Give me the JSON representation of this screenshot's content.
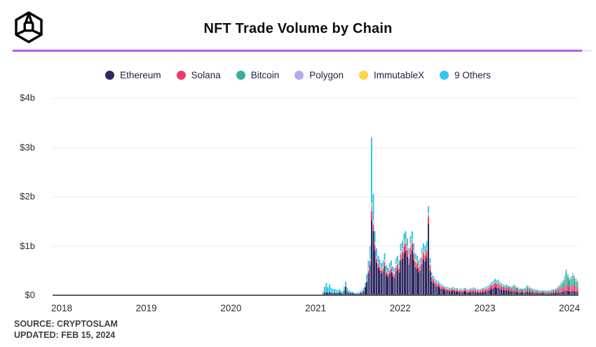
{
  "header": {
    "title": "NFT Trade Volume by Chain",
    "logo_alt": "CryptoSlam cube logo",
    "divider_color": "#b65ce6"
  },
  "footer": {
    "source_line": "SOURCE: CRYPTOSLAM",
    "updated_line": "UPDATED: FEB 15, 2024"
  },
  "chart_data": {
    "type": "bar",
    "stacked": true,
    "title": "NFT Trade Volume by Chain",
    "unit": "USD billions per week",
    "interval": "weekly",
    "legend_position": "top-center",
    "grid": "horizontal",
    "x_axis": {
      "ticks": [
        "2018",
        "2019",
        "2020",
        "2021",
        "2022",
        "2023",
        "2024"
      ],
      "range_years": [
        2017.9,
        2024.15
      ]
    },
    "y_axis": {
      "ticks": [
        "$4b",
        "$3b",
        "$2b",
        "$1b",
        "$0"
      ],
      "tick_values": [
        4,
        3,
        2,
        1,
        0
      ],
      "ylim": [
        0,
        4
      ]
    },
    "series": [
      {
        "name": "Ethereum",
        "color": "#2e2a62"
      },
      {
        "name": "Solana",
        "color": "#ee3d6d"
      },
      {
        "name": "Bitcoin",
        "color": "#35ae9e"
      },
      {
        "name": "Polygon",
        "color": "#b7a9e8"
      },
      {
        "name": "ImmutableX",
        "color": "#f8d748"
      },
      {
        "name": "9 Others",
        "color": "#33c5ee"
      }
    ],
    "bars": {
      "note": "values are [Ethereum, Solana, Bitcoin, Polygon, ImmutableX, 9 Others] in $ billions, weekly from late Jan 2021 to mid Feb 2024; 2018-2020 volumes are ~0",
      "x_start_year": 2021.08,
      "x_step_years": 0.019157,
      "values": [
        [
          0.03,
          0,
          0,
          0,
          0,
          0.05
        ],
        [
          0.05,
          0,
          0,
          0,
          0,
          0.12
        ],
        [
          0.06,
          0,
          0,
          0,
          0,
          0.19
        ],
        [
          0.05,
          0,
          0,
          0,
          0,
          0.11
        ],
        [
          0.06,
          0,
          0,
          0,
          0,
          0.16
        ],
        [
          0.05,
          0,
          0,
          0,
          0,
          0.1
        ],
        [
          0.04,
          0,
          0,
          0,
          0,
          0.09
        ],
        [
          0.04,
          0,
          0,
          0,
          0,
          0.08
        ],
        [
          0.04,
          0,
          0,
          0,
          0,
          0.07
        ],
        [
          0.04,
          0,
          0,
          0,
          0,
          0.06
        ],
        [
          0.05,
          0,
          0,
          0,
          0,
          0.07
        ],
        [
          0.04,
          0,
          0,
          0,
          0,
          0.05
        ],
        [
          0.03,
          0,
          0,
          0,
          0,
          0.05
        ],
        [
          0.09,
          0,
          0,
          0.01,
          0,
          0.08
        ],
        [
          0.17,
          0,
          0,
          0.01,
          0,
          0.1
        ],
        [
          0.07,
          0,
          0,
          0.01,
          0,
          0.06
        ],
        [
          0.05,
          0,
          0,
          0.01,
          0,
          0.04
        ],
        [
          0.04,
          0,
          0,
          0.01,
          0,
          0.03
        ],
        [
          0.04,
          0,
          0,
          0.01,
          0,
          0.02
        ],
        [
          0.03,
          0,
          0,
          0.01,
          0,
          0.02
        ],
        [
          0.03,
          0,
          0,
          0.01,
          0,
          0.01
        ],
        [
          0.03,
          0,
          0,
          0.01,
          0,
          0.02
        ],
        [
          0.03,
          0,
          0,
          0.01,
          0,
          0.02
        ],
        [
          0.04,
          0,
          0,
          0.01,
          0,
          0.03
        ],
        [
          0.05,
          0,
          0,
          0.01,
          0,
          0.04
        ],
        [
          0.08,
          0,
          0,
          0.02,
          0,
          0.04
        ],
        [
          0.16,
          0.01,
          0,
          0.02,
          0.01,
          0.05
        ],
        [
          0.26,
          0.02,
          0,
          0.03,
          0.01,
          0.1
        ],
        [
          0.45,
          0.04,
          0,
          0.04,
          0.02,
          0.15
        ],
        [
          0.62,
          0.06,
          0,
          0.05,
          0.02,
          0.25
        ],
        [
          1.52,
          0.18,
          0,
          0.1,
          0.08,
          1.32
        ],
        [
          1.3,
          0.12,
          0,
          0.06,
          0.04,
          0.53
        ],
        [
          0.9,
          0.1,
          0,
          0.05,
          0.03,
          0.22
        ],
        [
          0.65,
          0.08,
          0,
          0.04,
          0.02,
          0.16
        ],
        [
          0.55,
          0.07,
          0,
          0.04,
          0.02,
          0.12
        ],
        [
          0.5,
          0.06,
          0,
          0.03,
          0.02,
          0.11
        ],
        [
          0.44,
          0.06,
          0,
          0.03,
          0.02,
          0.1
        ],
        [
          0.48,
          0.06,
          0,
          0.03,
          0.02,
          0.11
        ],
        [
          0.58,
          0.08,
          0,
          0.04,
          0.02,
          0.13
        ],
        [
          0.4,
          0.06,
          0,
          0.03,
          0.02,
          0.09
        ],
        [
          0.36,
          0.06,
          0,
          0.03,
          0.02,
          0.08
        ],
        [
          0.43,
          0.07,
          0,
          0.03,
          0.02,
          0.1
        ],
        [
          0.46,
          0.08,
          0,
          0.04,
          0.02,
          0.1
        ],
        [
          0.38,
          0.07,
          0,
          0.03,
          0.02,
          0.08
        ],
        [
          0.35,
          0.07,
          0,
          0.03,
          0.02,
          0.08
        ],
        [
          0.48,
          0.09,
          0,
          0.04,
          0.03,
          0.11
        ],
        [
          0.52,
          0.1,
          0,
          0.04,
          0.03,
          0.11
        ],
        [
          0.46,
          0.08,
          0,
          0.04,
          0.02,
          0.1
        ],
        [
          0.7,
          0.12,
          0,
          0.05,
          0.03,
          0.15
        ],
        [
          0.74,
          0.13,
          0,
          0.05,
          0.03,
          0.15
        ],
        [
          0.85,
          0.14,
          0,
          0.06,
          0.04,
          0.16
        ],
        [
          0.9,
          0.14,
          0,
          0.06,
          0.04,
          0.16
        ],
        [
          0.78,
          0.13,
          0,
          0.06,
          0.03,
          0.15
        ],
        [
          0.62,
          0.12,
          0,
          0.05,
          0.03,
          0.13
        ],
        [
          0.82,
          0.14,
          0,
          0.06,
          0.04,
          0.14
        ],
        [
          0.9,
          0.15,
          0,
          0.06,
          0.04,
          0.15
        ],
        [
          0.7,
          0.13,
          0,
          0.05,
          0.03,
          0.14
        ],
        [
          0.56,
          0.11,
          0,
          0.04,
          0.03,
          0.11
        ],
        [
          0.53,
          0.1,
          0,
          0.04,
          0.03,
          0.1
        ],
        [
          0.46,
          0.09,
          0,
          0.04,
          0.02,
          0.09
        ],
        [
          0.5,
          0.1,
          0,
          0.04,
          0.02,
          0.09
        ],
        [
          0.64,
          0.12,
          0,
          0.05,
          0.03,
          0.11
        ],
        [
          0.72,
          0.13,
          0,
          0.05,
          0.03,
          0.12
        ],
        [
          0.68,
          0.12,
          0,
          0.05,
          0.03,
          0.12
        ],
        [
          0.76,
          0.13,
          0,
          0.05,
          0.03,
          0.13
        ],
        [
          1.45,
          0.14,
          0,
          0.05,
          0.03,
          0.13
        ],
        [
          0.5,
          0.1,
          0,
          0.04,
          0.02,
          0.09
        ],
        [
          0.28,
          0.08,
          0,
          0.03,
          0.02,
          0.05
        ],
        [
          0.25,
          0.07,
          0,
          0.02,
          0.01,
          0.05
        ],
        [
          0.22,
          0.06,
          0,
          0.02,
          0.01,
          0.04
        ],
        [
          0.18,
          0.06,
          0,
          0.02,
          0.01,
          0.04
        ],
        [
          0.17,
          0.05,
          0,
          0.02,
          0.01,
          0.03
        ],
        [
          0.15,
          0.05,
          0,
          0.01,
          0.01,
          0.03
        ],
        [
          0.13,
          0.04,
          0,
          0.01,
          0.01,
          0.03
        ],
        [
          0.12,
          0.04,
          0,
          0.01,
          0.01,
          0.02
        ],
        [
          0.1,
          0.04,
          0,
          0.01,
          0.01,
          0.02
        ],
        [
          0.1,
          0.03,
          0,
          0.01,
          0.01,
          0.02
        ],
        [
          0.09,
          0.03,
          0,
          0.01,
          0.01,
          0.02
        ],
        [
          0.08,
          0.03,
          0,
          0.01,
          0.01,
          0.02
        ],
        [
          0.08,
          0.03,
          0,
          0.01,
          0.01,
          0.02
        ],
        [
          0.09,
          0.03,
          0,
          0.01,
          0.01,
          0.02
        ],
        [
          0.08,
          0.03,
          0,
          0.01,
          0.01,
          0.02
        ],
        [
          0.07,
          0.03,
          0,
          0.01,
          0.01,
          0.02
        ],
        [
          0.07,
          0.03,
          0,
          0.01,
          0.01,
          0.02
        ],
        [
          0.06,
          0.03,
          0,
          0.01,
          0.01,
          0.02
        ],
        [
          0.07,
          0.03,
          0,
          0.01,
          0.01,
          0.02
        ],
        [
          0.06,
          0.03,
          0,
          0.01,
          0.01,
          0.02
        ],
        [
          0.07,
          0.03,
          0,
          0.01,
          0.01,
          0.02
        ],
        [
          0.07,
          0.04,
          0,
          0.01,
          0.01,
          0.02
        ],
        [
          0.06,
          0.03,
          0,
          0.01,
          0.01,
          0.02
        ],
        [
          0.05,
          0.03,
          0,
          0.01,
          0.01,
          0.02
        ],
        [
          0.06,
          0.04,
          0,
          0.01,
          0.01,
          0.02
        ],
        [
          0.07,
          0.04,
          0,
          0.01,
          0.01,
          0.02
        ],
        [
          0.07,
          0.04,
          0,
          0.01,
          0.01,
          0.03
        ],
        [
          0.06,
          0.04,
          0,
          0.01,
          0.01,
          0.02
        ],
        [
          0.05,
          0.04,
          0,
          0.01,
          0.01,
          0.02
        ],
        [
          0.05,
          0.03,
          0,
          0.01,
          0.01,
          0.02
        ],
        [
          0.05,
          0.04,
          0,
          0.01,
          0.01,
          0.02
        ],
        [
          0.06,
          0.04,
          0,
          0.01,
          0.01,
          0.02
        ],
        [
          0.06,
          0.05,
          0,
          0.01,
          0.01,
          0.02
        ],
        [
          0.07,
          0.05,
          0,
          0.01,
          0.01,
          0.02
        ],
        [
          0.08,
          0.05,
          0,
          0.01,
          0.01,
          0.03
        ],
        [
          0.09,
          0.06,
          0,
          0.01,
          0.01,
          0.03
        ],
        [
          0.1,
          0.06,
          0,
          0.01,
          0.01,
          0.04
        ],
        [
          0.12,
          0.07,
          0.01,
          0.02,
          0.01,
          0.03
        ],
        [
          0.14,
          0.08,
          0.01,
          0.02,
          0.01,
          0.04
        ],
        [
          0.16,
          0.08,
          0.01,
          0.02,
          0.01,
          0.05
        ],
        [
          0.14,
          0.08,
          0.01,
          0.02,
          0.01,
          0.04
        ],
        [
          0.15,
          0.08,
          0.02,
          0.02,
          0.01,
          0.04
        ],
        [
          0.13,
          0.07,
          0.02,
          0.02,
          0.01,
          0.03
        ],
        [
          0.11,
          0.06,
          0.02,
          0.01,
          0.01,
          0.03
        ],
        [
          0.1,
          0.06,
          0.02,
          0.01,
          0.01,
          0.02
        ],
        [
          0.09,
          0.05,
          0.02,
          0.01,
          0.01,
          0.02
        ],
        [
          0.1,
          0.05,
          0.03,
          0.01,
          0.01,
          0.02
        ],
        [
          0.09,
          0.05,
          0.03,
          0.01,
          0.01,
          0.01
        ],
        [
          0.08,
          0.05,
          0.03,
          0.01,
          0.01,
          0.01
        ],
        [
          0.08,
          0.04,
          0.03,
          0.01,
          0.01,
          0.01
        ],
        [
          0.08,
          0.04,
          0.05,
          0.01,
          0.01,
          0.01
        ],
        [
          0.08,
          0.04,
          0.07,
          0.01,
          0.01,
          0.01
        ],
        [
          0.06,
          0.04,
          0.05,
          0.01,
          0.01,
          0.01
        ],
        [
          0.06,
          0.04,
          0.04,
          0.01,
          0.01,
          0
        ],
        [
          0.06,
          0.03,
          0.03,
          0.01,
          0.01,
          0.01
        ],
        [
          0.05,
          0.03,
          0.03,
          0.01,
          0.01,
          0.01
        ],
        [
          0.05,
          0.03,
          0.03,
          0.01,
          0,
          0.01
        ],
        [
          0.05,
          0.03,
          0.04,
          0.01,
          0,
          0.01
        ],
        [
          0.06,
          0.03,
          0.04,
          0.01,
          0.01,
          0.01
        ],
        [
          0.07,
          0.04,
          0.05,
          0.01,
          0.01,
          0.02
        ],
        [
          0.06,
          0.04,
          0.04,
          0.01,
          0.01,
          0.02
        ],
        [
          0.05,
          0.03,
          0.04,
          0.01,
          0.01,
          0.01
        ],
        [
          0.05,
          0.03,
          0.03,
          0.01,
          0.01,
          0.01
        ],
        [
          0.05,
          0.03,
          0.02,
          0.01,
          0.01,
          0.01
        ],
        [
          0.04,
          0.03,
          0.02,
          0.01,
          0.01,
          0.01
        ],
        [
          0.04,
          0.03,
          0.02,
          0.01,
          0,
          0.01
        ],
        [
          0.04,
          0.02,
          0.02,
          0.01,
          0,
          0.01
        ],
        [
          0.04,
          0.02,
          0.02,
          0.01,
          0,
          0.01
        ],
        [
          0.04,
          0.02,
          0.02,
          0.01,
          0,
          0.01
        ],
        [
          0.03,
          0.02,
          0.02,
          0.01,
          0,
          0.01
        ],
        [
          0.04,
          0.02,
          0.02,
          0.01,
          0,
          0.01
        ],
        [
          0.03,
          0.02,
          0.02,
          0.01,
          0,
          0.01
        ],
        [
          0.03,
          0.02,
          0.02,
          0.01,
          0,
          0.01
        ],
        [
          0.04,
          0.02,
          0.02,
          0.01,
          0,
          0.01
        ],
        [
          0.04,
          0.03,
          0.02,
          0.01,
          0,
          0.01
        ],
        [
          0.04,
          0.03,
          0.03,
          0.01,
          0,
          0.01
        ],
        [
          0.04,
          0.03,
          0.03,
          0.01,
          0.01,
          0.01
        ],
        [
          0.05,
          0.04,
          0.03,
          0.01,
          0.01,
          0.01
        ],
        [
          0.05,
          0.05,
          0.04,
          0.02,
          0.01,
          0.01
        ],
        [
          0.06,
          0.06,
          0.06,
          0.02,
          0.01,
          0.01
        ],
        [
          0.06,
          0.07,
          0.08,
          0.02,
          0.01,
          0.02
        ],
        [
          0.07,
          0.08,
          0.1,
          0.02,
          0.01,
          0.02
        ],
        [
          0.08,
          0.1,
          0.14,
          0.02,
          0.01,
          0.03
        ],
        [
          0.09,
          0.13,
          0.24,
          0.02,
          0.01,
          0.03
        ],
        [
          0.08,
          0.11,
          0.17,
          0.02,
          0.01,
          0.03
        ],
        [
          0.07,
          0.09,
          0.14,
          0.02,
          0.01,
          0.02
        ],
        [
          0.08,
          0.1,
          0.15,
          0.02,
          0.01,
          0.02
        ],
        [
          0.09,
          0.12,
          0.18,
          0.02,
          0.01,
          0.03
        ],
        [
          0.08,
          0.11,
          0.16,
          0.02,
          0.01,
          0.02
        ],
        [
          0.07,
          0.09,
          0.12,
          0.02,
          0.01,
          0.02
        ],
        [
          0.07,
          0.08,
          0.11,
          0.02,
          0.01,
          0.01
        ],
        [
          0.06,
          0.07,
          0.09,
          0.02,
          0.01,
          0.01
        ]
      ]
    }
  }
}
